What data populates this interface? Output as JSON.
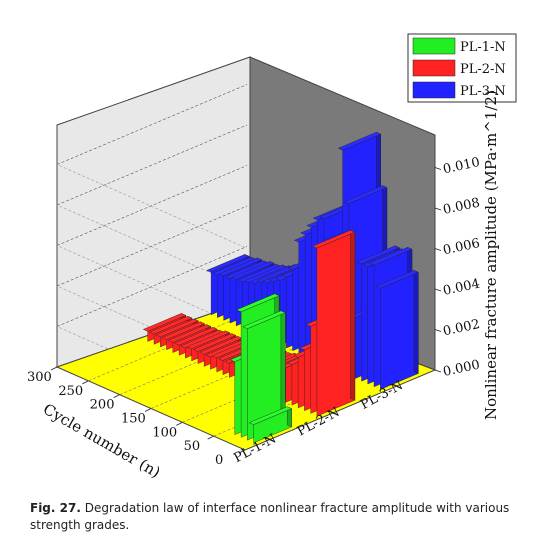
{
  "chart_data": {
    "type": "bar",
    "subtype": "3d-bar",
    "x_axis": {
      "label": "",
      "categories": [
        "PL-1-N",
        "PL-2-N",
        "PL-3-N"
      ]
    },
    "y_axis": {
      "label": "Cycle number (n)",
      "ticks": [
        "0",
        "50",
        "100",
        "150",
        "200",
        "250",
        "300"
      ],
      "range": [
        0,
        300
      ]
    },
    "z_axis": {
      "label": "Nonlinear fracture amplitude (MPa·m^1/2)",
      "ticks": [
        "0.000",
        "0.002",
        "0.004",
        "0.006",
        "0.008",
        "0.010"
      ],
      "range": [
        0,
        0.012
      ]
    },
    "legend": {
      "position": "top-right",
      "entries": [
        {
          "name": "PL-1-N",
          "color": "#22ee22"
        },
        {
          "name": "PL-2-N",
          "color": "#ff2222"
        },
        {
          "name": "PL-3-N",
          "color": "#2222ff"
        }
      ]
    },
    "series": [
      {
        "name": "PL-1-N",
        "color": "#22ee22",
        "points": [
          {
            "cycle": 10,
            "value": 0.0009
          },
          {
            "cycle": 20,
            "value": 0.0055
          },
          {
            "cycle": 30,
            "value": 0.0062
          },
          {
            "cycle": 40,
            "value": 0.0036
          }
        ]
      },
      {
        "name": "PL-2-N",
        "color": "#ff2222",
        "points": [
          {
            "cycle": 10,
            "value": 0.0083
          },
          {
            "cycle": 20,
            "value": 0.0043
          },
          {
            "cycle": 30,
            "value": 0.003
          },
          {
            "cycle": 40,
            "value": 0.0025
          },
          {
            "cycle": 50,
            "value": 0.002
          },
          {
            "cycle": 60,
            "value": 0.0017
          },
          {
            "cycle": 70,
            "value": 0.0015
          },
          {
            "cycle": 80,
            "value": 0.0012
          },
          {
            "cycle": 90,
            "value": 0.0011
          },
          {
            "cycle": 100,
            "value": 0.001
          },
          {
            "cycle": 110,
            "value": 0.0009
          },
          {
            "cycle": 120,
            "value": 0.0009
          },
          {
            "cycle": 130,
            "value": 0.0008
          },
          {
            "cycle": 140,
            "value": 0.0008
          },
          {
            "cycle": 150,
            "value": 0.0007
          },
          {
            "cycle": 160,
            "value": 0.0007
          },
          {
            "cycle": 170,
            "value": 0.0007
          },
          {
            "cycle": 180,
            "value": 0.0006
          },
          {
            "cycle": 190,
            "value": 0.0006
          },
          {
            "cycle": 200,
            "value": 0.0006
          },
          {
            "cycle": 210,
            "value": 0.0006
          },
          {
            "cycle": 220,
            "value": 0.0005
          },
          {
            "cycle": 230,
            "value": 0.0005
          },
          {
            "cycle": 240,
            "value": 0.0005
          },
          {
            "cycle": 250,
            "value": 0.0005
          },
          {
            "cycle": 260,
            "value": 0.0005
          },
          {
            "cycle": 270,
            "value": 0.0005
          },
          {
            "cycle": 280,
            "value": 0.0005
          }
        ]
      },
      {
        "name": "PL-3-N",
        "color": "#2222ff",
        "points": [
          {
            "cycle": 10,
            "value": 0.005
          },
          {
            "cycle": 20,
            "value": 0.006
          },
          {
            "cycle": 30,
            "value": 0.0058
          },
          {
            "cycle": 40,
            "value": 0.0058
          },
          {
            "cycle": 50,
            "value": 0.003
          },
          {
            "cycle": 60,
            "value": 0.0085
          },
          {
            "cycle": 70,
            "value": 0.011
          },
          {
            "cycle": 80,
            "value": 0.006
          },
          {
            "cycle": 90,
            "value": 0.0062
          },
          {
            "cycle": 100,
            "value": 0.0072
          },
          {
            "cycle": 110,
            "value": 0.007
          },
          {
            "cycle": 120,
            "value": 0.0065
          },
          {
            "cycle": 130,
            "value": 0.006
          },
          {
            "cycle": 140,
            "value": 0.0055
          },
          {
            "cycle": 150,
            "value": 0.004
          },
          {
            "cycle": 160,
            "value": 0.0035
          },
          {
            "cycle": 170,
            "value": 0.0032
          },
          {
            "cycle": 180,
            "value": 0.003
          },
          {
            "cycle": 190,
            "value": 0.0028
          },
          {
            "cycle": 200,
            "value": 0.0027
          },
          {
            "cycle": 210,
            "value": 0.0025
          },
          {
            "cycle": 220,
            "value": 0.0024
          },
          {
            "cycle": 230,
            "value": 0.0023
          },
          {
            "cycle": 240,
            "value": 0.0023
          },
          {
            "cycle": 250,
            "value": 0.0022
          },
          {
            "cycle": 260,
            "value": 0.0022
          },
          {
            "cycle": 270,
            "value": 0.0021
          },
          {
            "cycle": 280,
            "value": 0.0021
          }
        ]
      }
    ]
  },
  "caption": {
    "label": "Fig. 27.",
    "text": "Degradation law of interface nonlinear fracture amplitude with various strength grades."
  }
}
